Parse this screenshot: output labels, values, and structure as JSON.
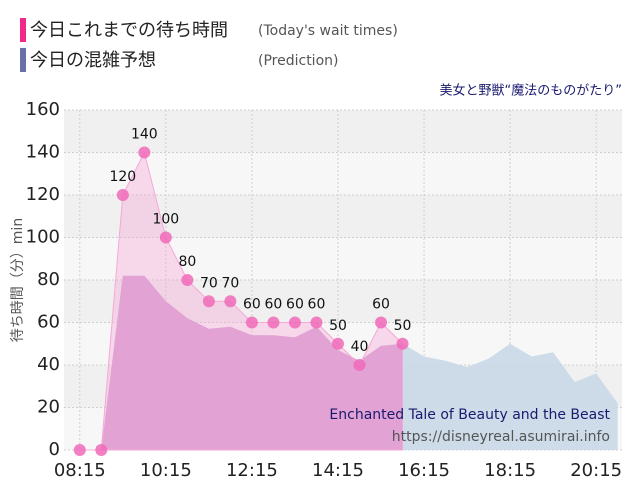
{
  "chart_data": {
    "type": "area",
    "title": "美女と野獣“魔法のものがたり”",
    "annotation": "Enchanted Tale of Beauty and the Beast",
    "source": "https://disneyreal.asumirai.info",
    "ylabel": "待ち時間（分）min",
    "xlim": [
      473,
      1251
    ],
    "ylim": [
      0,
      160
    ],
    "xticks": [
      {
        "value": 495,
        "label": "08:15"
      },
      {
        "value": 615,
        "label": "10:15"
      },
      {
        "value": 735,
        "label": "12:15"
      },
      {
        "value": 855,
        "label": "14:15"
      },
      {
        "value": 975,
        "label": "16:15"
      },
      {
        "value": 1095,
        "label": "18:15"
      },
      {
        "value": 1215,
        "label": "20:15"
      }
    ],
    "yticks": [
      0,
      20,
      40,
      60,
      80,
      100,
      120,
      140,
      160
    ],
    "grid": true,
    "series": [
      {
        "name": "今日これまでの待ち時間",
        "name_en": "(Today's wait times)",
        "color": "#f0288c",
        "x": [
          495,
          525,
          555,
          585,
          615,
          645,
          675,
          705,
          735,
          765,
          795,
          825,
          855,
          885,
          915,
          945
        ],
        "values": [
          0,
          0,
          120,
          140,
          100,
          80,
          70,
          70,
          60,
          60,
          60,
          60,
          50,
          40,
          60,
          50
        ],
        "value_labels": [
          null,
          null,
          "120",
          "140",
          "100",
          "80",
          "70",
          "70",
          "60",
          "60",
          "60",
          "60",
          "50",
          "40",
          "60",
          "50"
        ]
      },
      {
        "name": "今日の混雑予想",
        "name_en": "(Prediction)",
        "color": "#6a6fa6",
        "x": [
          495,
          525,
          555,
          585,
          615,
          645,
          675,
          705,
          735,
          765,
          795,
          825,
          855,
          885,
          915,
          945,
          975,
          1005,
          1035,
          1065,
          1095,
          1125,
          1155,
          1185,
          1215,
          1245
        ],
        "values": [
          0,
          0,
          82,
          82,
          70,
          62,
          57,
          58,
          54,
          54,
          53,
          58,
          47,
          42,
          49,
          50,
          44,
          42,
          39,
          43,
          50,
          44,
          46,
          32,
          36,
          22
        ]
      }
    ]
  }
}
